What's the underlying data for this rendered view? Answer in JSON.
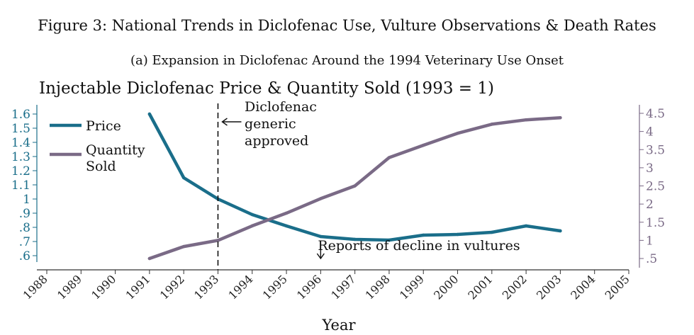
{
  "figure_title": "Figure 3: National Trends in Diclofenac Use, Vulture Observations & Death Rates",
  "subfigure_title": "(a) Expansion in Diclofenac Around the 1994 Veterinary Use Onset",
  "chart_data": {
    "type": "line",
    "title": "Injectable Diclofenac Price & Quantity Sold (1993 = 1)",
    "xlabel": "Year",
    "x": [
      1988,
      1989,
      1990,
      1991,
      1992,
      1993,
      1994,
      1995,
      1996,
      1997,
      1998,
      1999,
      2000,
      2001,
      2002,
      2003,
      2004,
      2005
    ],
    "x_tick_labels": [
      "1988",
      "1989",
      "1990",
      "1991",
      "1992",
      "1993",
      "1994",
      "1995",
      "1996",
      "1997",
      "1998",
      "1999",
      "2000",
      "2001",
      "2002",
      "2003",
      "2004",
      "2005"
    ],
    "xlim": [
      1988,
      2005
    ],
    "y_left": {
      "ylim": [
        0.6,
        1.6
      ],
      "tick_values": [
        0.6,
        0.7,
        0.8,
        0.9,
        1,
        1.1,
        1.2,
        1.3,
        1.4,
        1.5,
        1.6
      ],
      "tick_labels": [
        ".6",
        ".7",
        ".8",
        ".9",
        "1",
        "1.1",
        "1.2",
        "1.3",
        "1.4",
        "1.5",
        "1.6"
      ],
      "color": "#1a6e8a"
    },
    "y_right": {
      "ylim": [
        0.5,
        4.5
      ],
      "tick_values": [
        0.5,
        1,
        1.5,
        2,
        2.5,
        3,
        3.5,
        4,
        4.5
      ],
      "tick_labels": [
        ".5",
        "1",
        "1.5",
        "2",
        "2.5",
        "3",
        "3.5",
        "4",
        "4.5"
      ],
      "color": "#7a6a86"
    },
    "series": [
      {
        "name": "Price",
        "axis": "left",
        "color": "#1a6e8a",
        "x": [
          1991,
          1992,
          1993,
          1994,
          1995,
          1996,
          1997,
          1998,
          1999,
          2000,
          2001,
          2002,
          2003
        ],
        "y": [
          1.6,
          1.15,
          1.0,
          0.89,
          0.81,
          0.735,
          0.715,
          0.71,
          0.745,
          0.75,
          0.765,
          0.81,
          0.775
        ]
      },
      {
        "name": "Quantity\nSold",
        "axis": "right",
        "color": "#7a6a86",
        "x": [
          1991,
          1992,
          1993,
          1994,
          1995,
          1996,
          1997,
          1998,
          1999,
          2000,
          2001,
          2002,
          2003
        ],
        "y": [
          0.5,
          0.83,
          1.0,
          1.4,
          1.75,
          2.15,
          2.5,
          3.28,
          3.62,
          3.95,
          4.2,
          4.32,
          4.38
        ]
      }
    ],
    "legend_position": "top-left",
    "annotations": [
      {
        "text": "Diclofenac\ngeneric\napproved",
        "x": 1993,
        "type": "vertical-dashed-line-with-arrow"
      },
      {
        "text": "Reports of decline in vultures",
        "x": 1996,
        "type": "down-arrow"
      }
    ]
  }
}
